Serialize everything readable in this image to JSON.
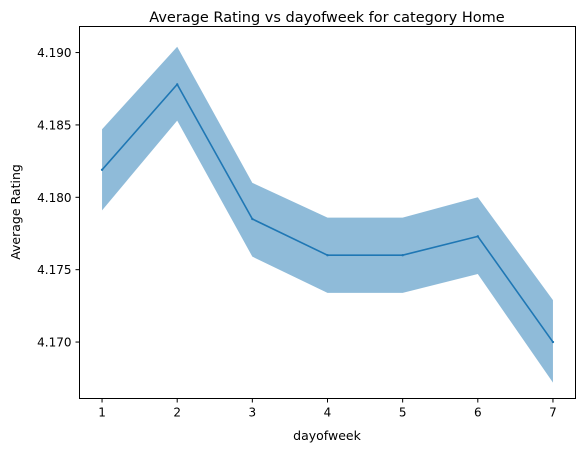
{
  "chart_data": {
    "type": "line",
    "title": "Average Rating vs dayofweek for category Home",
    "xlabel": "dayofweek",
    "ylabel": "Average Rating",
    "x": [
      1,
      2,
      3,
      4,
      5,
      6,
      7
    ],
    "series": [
      {
        "values": [
          4.1819,
          4.1878,
          4.1785,
          4.176,
          4.176,
          4.1773,
          4.17
        ],
        "lower": [
          4.1791,
          4.1853,
          4.1759,
          4.1734,
          4.1734,
          4.1747,
          4.1672
        ],
        "upper": [
          4.1847,
          4.1904,
          4.181,
          4.1786,
          4.1786,
          4.18,
          4.1729
        ],
        "color": "#1f77b4",
        "band_color": "#1f77b4",
        "band_opacity": 0.5
      }
    ],
    "xticks": [
      "1",
      "2",
      "3",
      "4",
      "5",
      "6",
      "7"
    ],
    "yticks": [
      "4.170",
      "4.175",
      "4.180",
      "4.185",
      "4.190"
    ],
    "ytick_values": [
      4.17,
      4.175,
      4.18,
      4.185,
      4.19
    ],
    "xlim": [
      0.7,
      7.3
    ],
    "ylim": [
      4.1661,
      4.1918
    ],
    "grid": false
  }
}
